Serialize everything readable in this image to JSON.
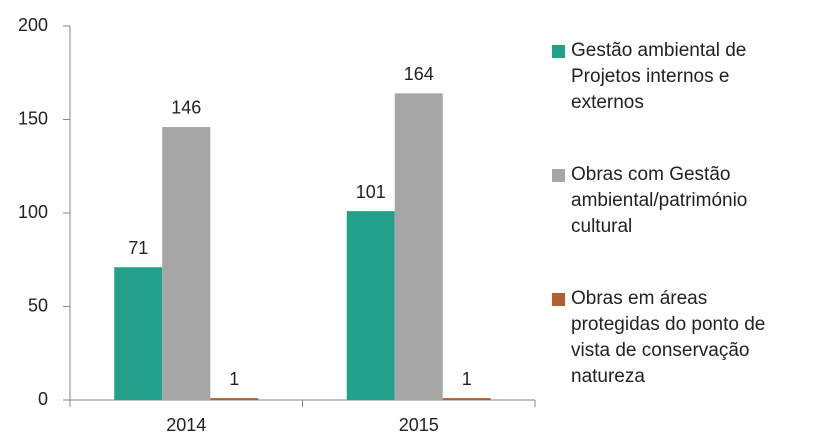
{
  "chart_data": {
    "type": "bar",
    "categories": [
      "2014",
      "2015"
    ],
    "series": [
      {
        "name": "Gestão ambiental de Projetos internos e externos",
        "color": "#21a08a",
        "values": [
          71,
          101
        ]
      },
      {
        "name": "Obras com Gestão ambiental/património cultural",
        "color": "#a6a6a6",
        "values": [
          146,
          164
        ]
      },
      {
        "name": "Obras em áreas protegidas do ponto de vista de conservação natureza",
        "color": "#b0602a",
        "values": [
          1,
          1
        ]
      }
    ],
    "ylim": [
      0,
      200
    ],
    "yticks": [
      0,
      50,
      100,
      150,
      200
    ],
    "grid": false,
    "legend": "right"
  }
}
